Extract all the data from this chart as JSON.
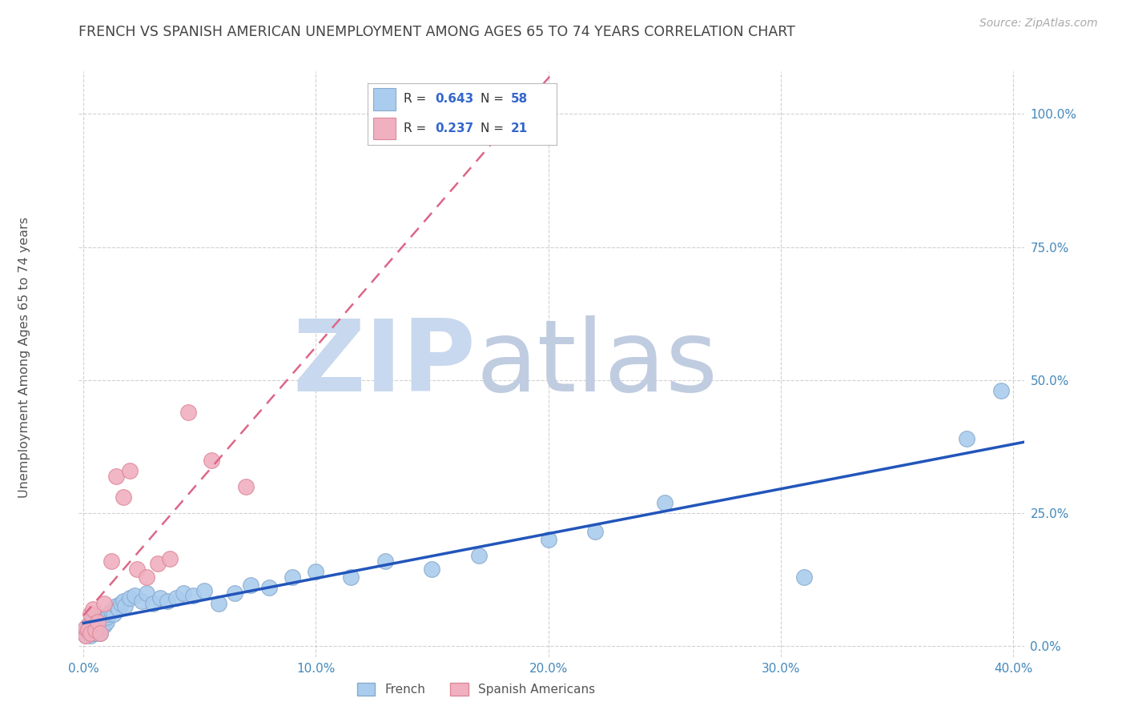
{
  "title": "FRENCH VS SPANISH AMERICAN UNEMPLOYMENT AMONG AGES 65 TO 74 YEARS CORRELATION CHART",
  "source": "Source: ZipAtlas.com",
  "ylabel": "Unemployment Among Ages 65 to 74 years",
  "xlim": [
    -0.002,
    0.405
  ],
  "ylim": [
    -0.02,
    1.08
  ],
  "xticks": [
    0.0,
    0.1,
    0.2,
    0.3,
    0.4
  ],
  "xtick_labels": [
    "0.0%",
    "10.0%",
    "20.0%",
    "30.0%",
    "40.0%"
  ],
  "yticks": [
    0.0,
    0.25,
    0.5,
    0.75,
    1.0
  ],
  "ytick_labels": [
    "0.0%",
    "25.0%",
    "50.0%",
    "75.0%",
    "100.0%"
  ],
  "title_color": "#444444",
  "source_color": "#aaaaaa",
  "watermark_zip_color": "#c8d8ee",
  "watermark_atlas_color": "#c0cce0",
  "french_color": "#aaccee",
  "french_edge_color": "#88aacc",
  "spanish_color": "#f0b0c0",
  "spanish_edge_color": "#dd8898",
  "french_line_color": "#2255bb",
  "spanish_line_color": "#dd6688",
  "legend_text_color": "#333333",
  "legend_value_color": "#3366cc",
  "tick_color": "#4488bb",
  "french_R": 0.643,
  "french_N": 58,
  "spanish_R": 0.237,
  "spanish_N": 21,
  "french_x": [
    0.001,
    0.001,
    0.002,
    0.002,
    0.002,
    0.003,
    0.003,
    0.003,
    0.004,
    0.004,
    0.004,
    0.005,
    0.005,
    0.005,
    0.006,
    0.006,
    0.007,
    0.007,
    0.008,
    0.008,
    0.009,
    0.01,
    0.01,
    0.011,
    0.012,
    0.013,
    0.014,
    0.015,
    0.016,
    0.017,
    0.018,
    0.02,
    0.022,
    0.025,
    0.027,
    0.03,
    0.033,
    0.036,
    0.04,
    0.043,
    0.047,
    0.052,
    0.058,
    0.065,
    0.072,
    0.08,
    0.09,
    0.1,
    0.115,
    0.13,
    0.15,
    0.17,
    0.2,
    0.22,
    0.25,
    0.31,
    0.38,
    0.395
  ],
  "french_y": [
    0.02,
    0.03,
    0.025,
    0.035,
    0.04,
    0.02,
    0.03,
    0.04,
    0.025,
    0.035,
    0.05,
    0.025,
    0.035,
    0.045,
    0.03,
    0.04,
    0.025,
    0.045,
    0.035,
    0.05,
    0.04,
    0.045,
    0.055,
    0.06,
    0.065,
    0.06,
    0.075,
    0.07,
    0.08,
    0.085,
    0.075,
    0.09,
    0.095,
    0.085,
    0.1,
    0.08,
    0.09,
    0.085,
    0.09,
    0.1,
    0.095,
    0.105,
    0.08,
    0.1,
    0.115,
    0.11,
    0.13,
    0.14,
    0.13,
    0.16,
    0.145,
    0.17,
    0.2,
    0.215,
    0.27,
    0.13,
    0.39,
    0.48
  ],
  "spanish_x": [
    0.001,
    0.001,
    0.002,
    0.003,
    0.003,
    0.004,
    0.005,
    0.006,
    0.007,
    0.009,
    0.012,
    0.014,
    0.017,
    0.02,
    0.023,
    0.027,
    0.032,
    0.037,
    0.045,
    0.055,
    0.07
  ],
  "spanish_y": [
    0.02,
    0.035,
    0.03,
    0.025,
    0.06,
    0.07,
    0.03,
    0.045,
    0.025,
    0.08,
    0.16,
    0.32,
    0.28,
    0.33,
    0.145,
    0.13,
    0.155,
    0.165,
    0.44,
    0.35,
    0.3
  ]
}
